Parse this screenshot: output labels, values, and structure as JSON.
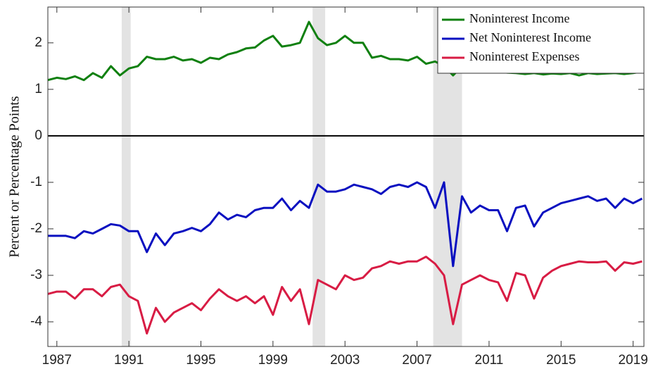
{
  "chart_data": {
    "type": "line",
    "ylabel": "Percent or Percentage Points",
    "x": [
      1986.5,
      1987,
      1987.5,
      1988,
      1988.5,
      1989,
      1989.5,
      1990,
      1990.5,
      1991,
      1991.5,
      1992,
      1992.5,
      1993,
      1993.5,
      1994,
      1994.5,
      1995,
      1995.5,
      1996,
      1996.5,
      1997,
      1997.5,
      1998,
      1998.5,
      1999,
      1999.5,
      2000,
      2000.5,
      2001,
      2001.5,
      2002,
      2002.5,
      2003,
      2003.5,
      2004,
      2004.5,
      2005,
      2005.5,
      2006,
      2006.5,
      2007,
      2007.5,
      2008,
      2008.5,
      2009,
      2009.5,
      2010,
      2010.5,
      2011,
      2011.5,
      2012,
      2012.5,
      2013,
      2013.5,
      2014,
      2014.5,
      2015,
      2015.5,
      2016,
      2016.5,
      2017,
      2017.5,
      2018,
      2018.5,
      2019,
      2019.5
    ],
    "series": [
      {
        "name": "Noninterest Income",
        "color": "#108010",
        "values": [
          1.2,
          1.25,
          1.22,
          1.28,
          1.2,
          1.35,
          1.25,
          1.5,
          1.3,
          1.45,
          1.5,
          1.7,
          1.65,
          1.65,
          1.7,
          1.62,
          1.65,
          1.57,
          1.68,
          1.65,
          1.75,
          1.8,
          1.88,
          1.9,
          2.05,
          2.15,
          1.92,
          1.95,
          2.0,
          2.45,
          2.1,
          1.95,
          2.0,
          2.15,
          2.0,
          2.0,
          1.68,
          1.72,
          1.65,
          1.65,
          1.62,
          1.7,
          1.55,
          1.6,
          1.5,
          1.3,
          1.5,
          1.45,
          1.4,
          1.4,
          1.38,
          1.36,
          1.35,
          1.33,
          1.35,
          1.32,
          1.34,
          1.33,
          1.35,
          1.3,
          1.35,
          1.33,
          1.34,
          1.35,
          1.33,
          1.35,
          1.38
        ]
      },
      {
        "name": "Net Noninterest Income",
        "color": "#0a10c0",
        "values": [
          -2.15,
          -2.15,
          -2.15,
          -2.2,
          -2.05,
          -2.1,
          -2.0,
          -1.9,
          -1.93,
          -2.05,
          -2.05,
          -2.5,
          -2.1,
          -2.35,
          -2.1,
          -2.05,
          -1.98,
          -2.05,
          -1.9,
          -1.65,
          -1.8,
          -1.7,
          -1.75,
          -1.6,
          -1.55,
          -1.55,
          -1.35,
          -1.6,
          -1.4,
          -1.55,
          -1.05,
          -1.2,
          -1.2,
          -1.15,
          -1.05,
          -1.1,
          -1.15,
          -1.25,
          -1.1,
          -1.05,
          -1.1,
          -1.0,
          -1.1,
          -1.55,
          -1.0,
          -2.8,
          -1.3,
          -1.65,
          -1.5,
          -1.6,
          -1.6,
          -2.05,
          -1.55,
          -1.5,
          -1.95,
          -1.65,
          -1.55,
          -1.45,
          -1.4,
          -1.35,
          -1.3,
          -1.4,
          -1.35,
          -1.55,
          -1.35,
          -1.45,
          -1.35
        ]
      },
      {
        "name": "Noninterest Expenses",
        "color": "#d81c44",
        "values": [
          -3.4,
          -3.35,
          -3.35,
          -3.5,
          -3.3,
          -3.3,
          -3.45,
          -3.25,
          -3.2,
          -3.45,
          -3.55,
          -4.25,
          -3.7,
          -4.0,
          -3.8,
          -3.7,
          -3.6,
          -3.75,
          -3.5,
          -3.3,
          -3.45,
          -3.55,
          -3.45,
          -3.6,
          -3.45,
          -3.85,
          -3.25,
          -3.55,
          -3.3,
          -4.05,
          -3.1,
          -3.2,
          -3.3,
          -3.0,
          -3.1,
          -3.05,
          -2.85,
          -2.8,
          -2.7,
          -2.75,
          -2.7,
          -2.7,
          -2.6,
          -2.75,
          -3.0,
          -4.05,
          -3.2,
          -3.1,
          -3.0,
          -3.1,
          -3.15,
          -3.55,
          -2.95,
          -3.0,
          -3.5,
          -3.05,
          -2.9,
          -2.8,
          -2.75,
          -2.7,
          -2.72,
          -2.72,
          -2.7,
          -2.9,
          -2.72,
          -2.75,
          -2.7
        ]
      }
    ],
    "shaded_periods": [
      [
        1990.6,
        1991.1
      ],
      [
        2001.2,
        2001.9
      ],
      [
        2007.9,
        2009.5
      ]
    ],
    "xlim": [
      1986.5,
      2019.6
    ],
    "xticks": [
      1987,
      1991,
      1995,
      1999,
      2003,
      2007,
      2011,
      2015,
      2019
    ],
    "ylim": [
      -4.53,
      2.77
    ],
    "yticks": [
      -4,
      -3,
      -2,
      -1,
      0,
      1,
      2
    ],
    "zero_line": true,
    "legend": "upper right"
  }
}
